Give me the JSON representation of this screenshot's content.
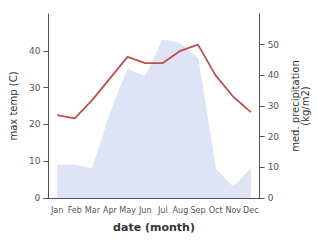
{
  "chart_data": {
    "type": "line",
    "categories": [
      "Jan",
      "Feb",
      "Mar",
      "Apr",
      "May",
      "Jun",
      "Jul",
      "Aug",
      "Sep",
      "Oct",
      "Nov",
      "Dec"
    ],
    "xlabel": "date (month)",
    "ylabel": "max temp (C)",
    "y2label": "med. precipitation\n(kg/m2)",
    "series": [
      {
        "type": "area",
        "color": "#c8d0f0",
        "values": [
          9,
          9,
          8,
          23,
          35,
          33,
          43,
          42,
          38,
          8,
          3,
          8
        ]
      },
      {
        "type": "line",
        "color": "#c0504d",
        "axis": "y2",
        "values": [
          27,
          26,
          32,
          39,
          46,
          44,
          44,
          48,
          50,
          40,
          33,
          28
        ]
      }
    ],
    "ylim": [
      0,
      50
    ],
    "yticks": [
      0,
      10,
      20,
      30,
      40
    ],
    "y2lim": [
      0,
      60
    ],
    "y2ticks": [
      0,
      10,
      20,
      30,
      40,
      50
    ],
    "grid": false
  }
}
